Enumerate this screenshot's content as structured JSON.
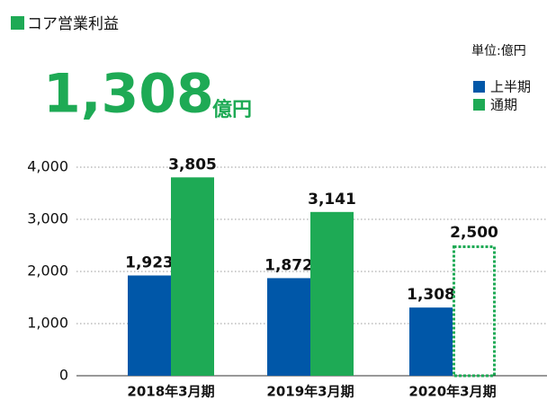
{
  "chart_data": {
    "type": "bar",
    "title": "コア営業利益",
    "headline": {
      "value": "1,308",
      "unit": "億円"
    },
    "unit_note": "単位:億円",
    "categories": [
      "2018年3月期",
      "2019年3月期",
      "2020年3月期"
    ],
    "series": [
      {
        "name": "上半期",
        "color": "#0057a8",
        "values": [
          1923,
          1872,
          1308
        ],
        "value_labels": [
          "1,923",
          "1,872",
          "1,308"
        ],
        "styles": [
          "solid",
          "solid",
          "solid"
        ]
      },
      {
        "name": "通期",
        "color": "#1eaa55",
        "values": [
          3805,
          3141,
          2500
        ],
        "value_labels": [
          "3,805",
          "3,141",
          "2,500"
        ],
        "styles": [
          "solid",
          "solid",
          "dotted"
        ]
      }
    ],
    "ylim": [
      0,
      4000
    ],
    "yticks": [
      0,
      {
        "value": 1000,
        "label": "1,000"
      },
      {
        "value": 2000,
        "label": "2,000"
      },
      {
        "value": 3000,
        "label": "3,000"
      },
      {
        "value": 4000,
        "label": "4,000"
      }
    ],
    "grid": true
  }
}
